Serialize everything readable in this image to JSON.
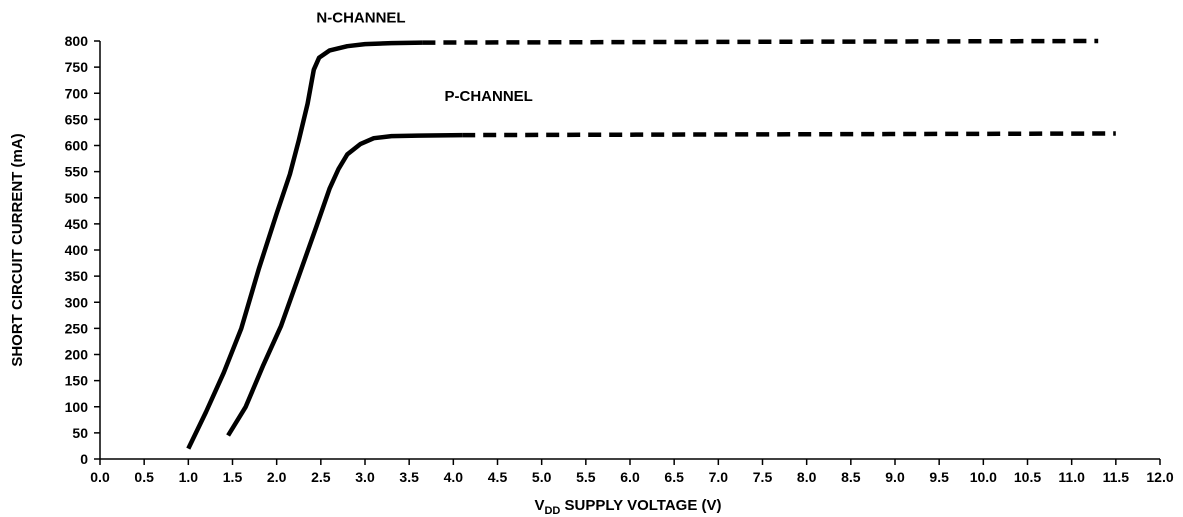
{
  "chart_data": {
    "type": "line",
    "title": "",
    "ylabel": "SHORT CIRCUIT CURRENT (mA)",
    "xlabel": {
      "prefix": "V",
      "subscript": "DD",
      "suffix": " SUPPLY VOLTAGE (V)"
    },
    "xlim": [
      0,
      12
    ],
    "ylim": [
      0,
      800
    ],
    "x_ticks": [
      "0.0",
      "0.5",
      "1.0",
      "1.5",
      "2.0",
      "2.5",
      "3.0",
      "3.5",
      "4.0",
      "4.5",
      "5.0",
      "5.5",
      "6.0",
      "6.5",
      "7.0",
      "7.5",
      "8.0",
      "8.5",
      "9.0",
      "9.5",
      "10.0",
      "10.5",
      "11.0",
      "11.5",
      "12.0"
    ],
    "y_ticks": [
      "0",
      "50",
      "100",
      "150",
      "200",
      "250",
      "300",
      "350",
      "400",
      "450",
      "500",
      "550",
      "600",
      "650",
      "700",
      "750",
      "800"
    ],
    "grid": false,
    "series": [
      {
        "name": "N-CHANNEL",
        "color": "#000000",
        "solid": [
          {
            "x": 1.0,
            "y": 20
          },
          {
            "x": 1.2,
            "y": 90
          },
          {
            "x": 1.4,
            "y": 165
          },
          {
            "x": 1.6,
            "y": 250
          },
          {
            "x": 1.8,
            "y": 365
          },
          {
            "x": 2.0,
            "y": 470
          },
          {
            "x": 2.15,
            "y": 545
          },
          {
            "x": 2.25,
            "y": 610
          },
          {
            "x": 2.35,
            "y": 680
          },
          {
            "x": 2.42,
            "y": 745
          },
          {
            "x": 2.48,
            "y": 768
          },
          {
            "x": 2.6,
            "y": 782
          },
          {
            "x": 2.8,
            "y": 790
          },
          {
            "x": 3.0,
            "y": 794
          },
          {
            "x": 3.3,
            "y": 796
          },
          {
            "x": 3.65,
            "y": 797
          }
        ],
        "dashed": [
          {
            "x": 3.65,
            "y": 797
          },
          {
            "x": 11.3,
            "y": 800
          }
        ]
      },
      {
        "name": "P-CHANNEL",
        "color": "#000000",
        "solid": [
          {
            "x": 1.45,
            "y": 45
          },
          {
            "x": 1.65,
            "y": 100
          },
          {
            "x": 1.85,
            "y": 180
          },
          {
            "x": 2.05,
            "y": 255
          },
          {
            "x": 2.25,
            "y": 350
          },
          {
            "x": 2.45,
            "y": 445
          },
          {
            "x": 2.6,
            "y": 518
          },
          {
            "x": 2.7,
            "y": 555
          },
          {
            "x": 2.8,
            "y": 583
          },
          {
            "x": 2.95,
            "y": 603
          },
          {
            "x": 3.1,
            "y": 614
          },
          {
            "x": 3.3,
            "y": 618
          },
          {
            "x": 3.6,
            "y": 619
          },
          {
            "x": 4.1,
            "y": 620
          }
        ],
        "dashed": [
          {
            "x": 4.1,
            "y": 620
          },
          {
            "x": 11.5,
            "y": 623
          }
        ]
      }
    ],
    "series_labels": [
      {
        "text": "N-CHANNEL",
        "x": 2.45,
        "y": 835
      },
      {
        "text": "P-CHANNEL",
        "x": 3.9,
        "y": 685
      }
    ]
  }
}
